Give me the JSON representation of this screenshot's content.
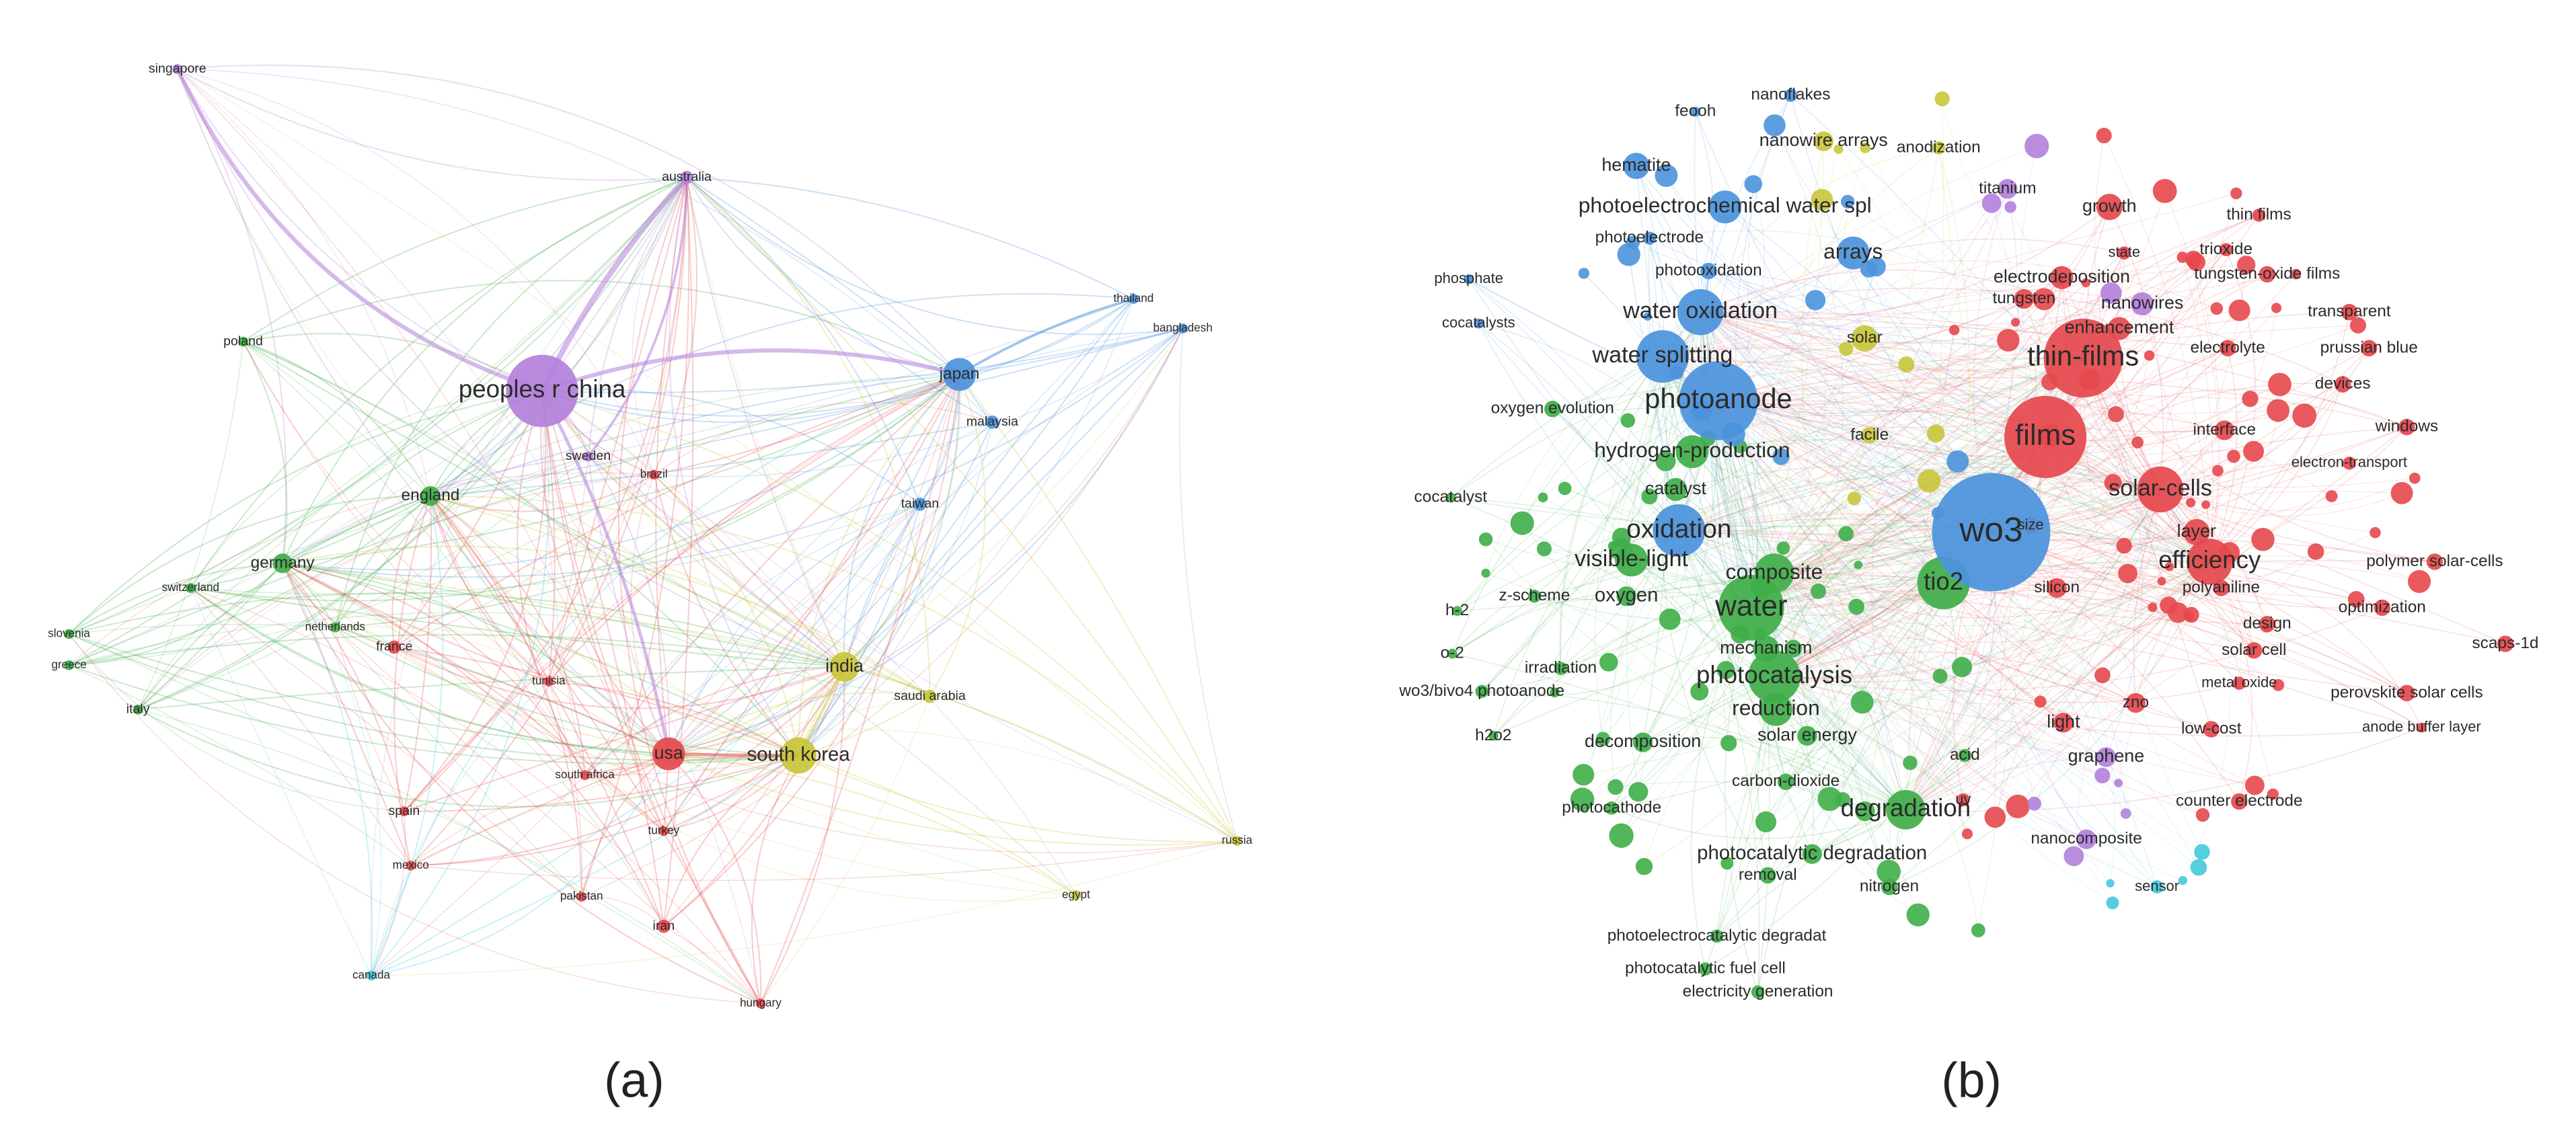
{
  "panels": [
    {
      "label": "(a)",
      "nodes": [
        {
          "label": "singapore",
          "color": "#b380da"
        },
        {
          "label": "australia",
          "color": "#b380da"
        },
        {
          "label": "peoples r china",
          "color": "#b380da"
        },
        {
          "label": "japan",
          "color": "#4b93dc"
        },
        {
          "label": "thailand",
          "color": "#4b93dc"
        },
        {
          "label": "bangladesh",
          "color": "#4b93dc"
        },
        {
          "label": "malaysia",
          "color": "#4b93dc"
        },
        {
          "label": "taiwan",
          "color": "#4b93dc"
        },
        {
          "label": "poland",
          "color": "#3fae49"
        },
        {
          "label": "england",
          "color": "#3fae49"
        },
        {
          "label": "sweden",
          "color": "#b380da"
        },
        {
          "label": "brazil",
          "color": "#e5484d"
        },
        {
          "label": "germany",
          "color": "#3fae49"
        },
        {
          "label": "switzerland",
          "color": "#3fae49"
        },
        {
          "label": "netherlands",
          "color": "#3fae49"
        },
        {
          "label": "slovenia",
          "color": "#3fae49"
        },
        {
          "label": "greece",
          "color": "#3fae49"
        },
        {
          "label": "italy",
          "color": "#3fae49"
        },
        {
          "label": "france",
          "color": "#e5484d"
        },
        {
          "label": "tunisia",
          "color": "#e5484d"
        },
        {
          "label": "india",
          "color": "#c8c63a"
        },
        {
          "label": "saudi arabia",
          "color": "#c8c63a"
        },
        {
          "label": "usa",
          "color": "#e5484d"
        },
        {
          "label": "south korea",
          "color": "#c8c63a"
        },
        {
          "label": "south africa",
          "color": "#e5484d"
        },
        {
          "label": "spain",
          "color": "#e5484d"
        },
        {
          "label": "turkey",
          "color": "#e5484d"
        },
        {
          "label": "mexico",
          "color": "#e5484d"
        },
        {
          "label": "pakistan",
          "color": "#e5484d"
        },
        {
          "label": "iran",
          "color": "#e5484d"
        },
        {
          "label": "egypt",
          "color": "#c8c63a"
        },
        {
          "label": "russia",
          "color": "#c8c63a"
        },
        {
          "label": "canada",
          "color": "#45c9dc"
        },
        {
          "label": "hungary",
          "color": "#e5484d"
        }
      ]
    },
    {
      "label": "(b)",
      "nodes": [
        {
          "label": "nanoflakes",
          "color": "#4b93dc"
        },
        {
          "label": "feooh",
          "color": "#4b93dc"
        },
        {
          "label": "nanowire arrays",
          "color": "#c8c63a"
        },
        {
          "label": "anodization",
          "color": "#c8c63a"
        },
        {
          "label": "hematite",
          "color": "#4b93dc"
        },
        {
          "label": "titanium",
          "color": "#b380da"
        },
        {
          "label": "growth",
          "color": "#e5484d"
        },
        {
          "label": "thin films",
          "color": "#e5484d"
        },
        {
          "label": "photoelectrochemical water spl",
          "color": "#4b93dc"
        },
        {
          "label": "photoelectrode",
          "color": "#4b93dc"
        },
        {
          "label": "state",
          "color": "#e5484d"
        },
        {
          "label": "trioxide",
          "color": "#e5484d"
        },
        {
          "label": "arrays",
          "color": "#4b93dc"
        },
        {
          "label": "tungsten-oxide films",
          "color": "#e5484d"
        },
        {
          "label": "photooxidation",
          "color": "#4b93dc"
        },
        {
          "label": "electrodeposition",
          "color": "#e5484d"
        },
        {
          "label": "phosphate",
          "color": "#4b93dc"
        },
        {
          "label": "tungsten",
          "color": "#e5484d"
        },
        {
          "label": "nanowires",
          "color": "#b380da"
        },
        {
          "label": "transparent",
          "color": "#e5484d"
        },
        {
          "label": "water oxidation",
          "color": "#4b93dc"
        },
        {
          "label": "cocatalysts",
          "color": "#4b93dc"
        },
        {
          "label": "enhancement",
          "color": "#e5484d"
        },
        {
          "label": "solar",
          "color": "#c8c63a"
        },
        {
          "label": "electrolyte",
          "color": "#e5484d"
        },
        {
          "label": "prussian blue",
          "color": "#e5484d"
        },
        {
          "label": "water splitting",
          "color": "#4b93dc"
        },
        {
          "label": "thin-films",
          "color": "#e5484d"
        },
        {
          "label": "devices",
          "color": "#e5484d"
        },
        {
          "label": "photoanode",
          "color": "#4b93dc"
        },
        {
          "label": "oxygen evolution",
          "color": "#3fae49"
        },
        {
          "label": "facile",
          "color": "#c8c63a"
        },
        {
          "label": "films",
          "color": "#e5484d"
        },
        {
          "label": "interface",
          "color": "#e5484d"
        },
        {
          "label": "windows",
          "color": "#e5484d"
        },
        {
          "label": "hydrogen-production",
          "color": "#3fae49"
        },
        {
          "label": "electron-transport",
          "color": "#e5484d"
        },
        {
          "label": "catalyst",
          "color": "#3fae49"
        },
        {
          "label": "solar-cells",
          "color": "#e5484d"
        },
        {
          "label": "cocatalyst",
          "color": "#3fae49"
        },
        {
          "label": "size",
          "color": "#e5484d"
        },
        {
          "label": "oxidation",
          "color": "#4b93dc"
        },
        {
          "label": "wo3",
          "color": "#4b93dc"
        },
        {
          "label": "layer",
          "color": "#e5484d"
        },
        {
          "label": "efficiency",
          "color": "#e5484d"
        },
        {
          "label": "visible-light",
          "color": "#3fae49"
        },
        {
          "label": "polymer solar-cells",
          "color": "#e5484d"
        },
        {
          "label": "composite",
          "color": "#3fae49"
        },
        {
          "label": "tio2",
          "color": "#3fae49"
        },
        {
          "label": "polyaniline",
          "color": "#e5484d"
        },
        {
          "label": "silicon",
          "color": "#e5484d"
        },
        {
          "label": "z-scheme",
          "color": "#3fae49"
        },
        {
          "label": "oxygen",
          "color": "#3fae49"
        },
        {
          "label": "water",
          "color": "#3fae49"
        },
        {
          "label": "h-2",
          "color": "#3fae49"
        },
        {
          "label": "optimization",
          "color": "#e5484d"
        },
        {
          "label": "design",
          "color": "#e5484d"
        },
        {
          "label": "scaps-1d",
          "color": "#e5484d"
        },
        {
          "label": "mechanism",
          "color": "#3fae49"
        },
        {
          "label": "solar cell",
          "color": "#e5484d"
        },
        {
          "label": "o-2",
          "color": "#3fae49"
        },
        {
          "label": "irradiation",
          "color": "#3fae49"
        },
        {
          "label": "photocatalysis",
          "color": "#3fae49"
        },
        {
          "label": "metal oxide",
          "color": "#e5484d"
        },
        {
          "label": "wo3/bivo4 photoanode",
          "color": "#3fae49"
        },
        {
          "label": "perovskite solar cells",
          "color": "#e5484d"
        },
        {
          "label": "zno",
          "color": "#e5484d"
        },
        {
          "label": "reduction",
          "color": "#3fae49"
        },
        {
          "label": "light",
          "color": "#e5484d"
        },
        {
          "label": "anode buffer layer",
          "color": "#e5484d"
        },
        {
          "label": "low-cost",
          "color": "#e5484d"
        },
        {
          "label": "h2o2",
          "color": "#3fae49"
        },
        {
          "label": "solar energy",
          "color": "#3fae49"
        },
        {
          "label": "decomposition",
          "color": "#3fae49"
        },
        {
          "label": "acid",
          "color": "#3fae49"
        },
        {
          "label": "graphene",
          "color": "#b380da"
        },
        {
          "label": "carbon-dioxide",
          "color": "#3fae49"
        },
        {
          "label": "uv",
          "color": "#e5484d"
        },
        {
          "label": "counter electrode",
          "color": "#e5484d"
        },
        {
          "label": "degradation",
          "color": "#3fae49"
        },
        {
          "label": "photocathode",
          "color": "#3fae49"
        },
        {
          "label": "nanocomposite",
          "color": "#b380da"
        },
        {
          "label": "photocatalytic degradation",
          "color": "#3fae49"
        },
        {
          "label": "removal",
          "color": "#3fae49"
        },
        {
          "label": "nitrogen",
          "color": "#3fae49"
        },
        {
          "label": "sensor",
          "color": "#45c9dc"
        },
        {
          "label": "photoelectrocatalytic degradat",
          "color": "#3fae49"
        },
        {
          "label": "photocatalytic fuel cell",
          "color": "#3fae49"
        },
        {
          "label": "electricity generation",
          "color": "#3fae49"
        }
      ]
    }
  ]
}
